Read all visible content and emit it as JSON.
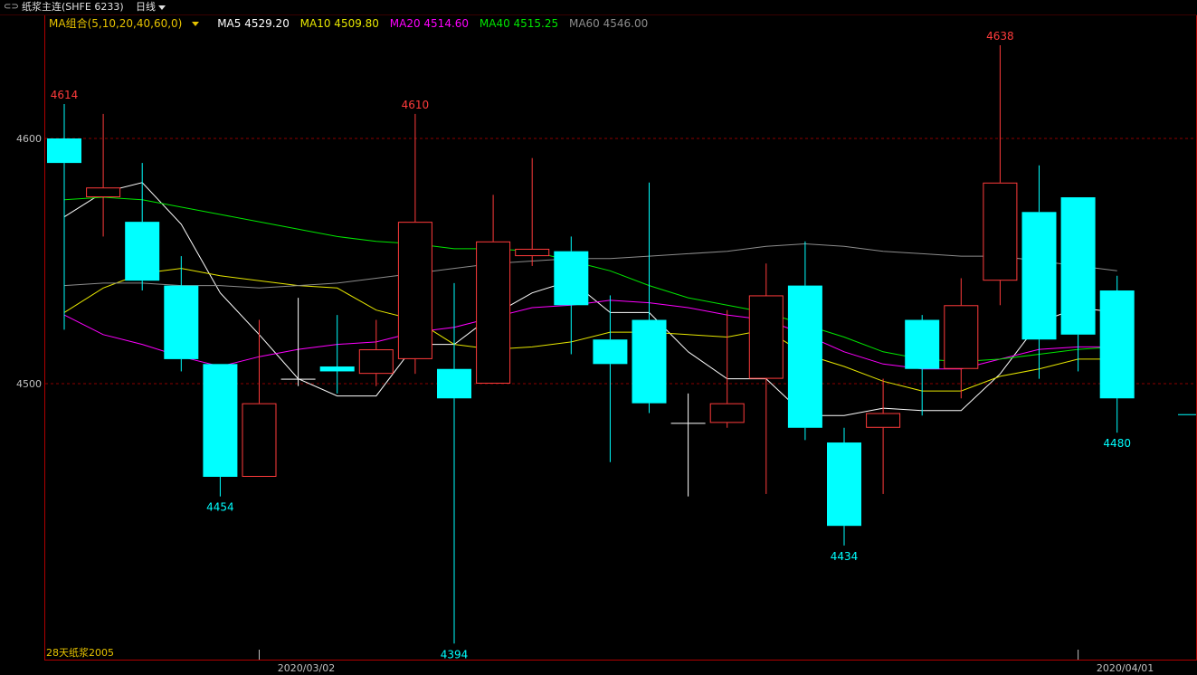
{
  "header": {
    "symbol_label": "纸浆主连(SHFE 6233)",
    "period_label": "日线"
  },
  "ma_legend": {
    "group_label": "MA组合(5,10,20,40,60,0)",
    "items": [
      {
        "label": "MA5 4529.20",
        "color": "#ffffff"
      },
      {
        "label": "MA10 4509.80",
        "color": "#e6e600"
      },
      {
        "label": "MA20 4514.60",
        "color": "#ff00ff"
      },
      {
        "label": "MA40 4515.25",
        "color": "#00e600"
      },
      {
        "label": "MA60 4546.00",
        "color": "#8c8c8c"
      }
    ]
  },
  "footer_note": "28天纸浆2005",
  "colors": {
    "up": "#ff3b3b",
    "down": "#00ffff",
    "frame": "#b00000",
    "grid": "#8b0000",
    "axis_text": "#c0c0c0"
  },
  "chart_data": {
    "type": "candlestick",
    "ylim": [
      4375,
      4650
    ],
    "yticks": [
      4500,
      4600
    ],
    "xtick_labels": [
      {
        "label": "2020/03/02",
        "index": 5
      },
      {
        "label": "2020/04/01",
        "index": 26
      }
    ],
    "candles": [
      {
        "o": 4600,
        "h": 4614,
        "l": 4522,
        "c": 4590
      },
      {
        "o": 4576,
        "h": 4610,
        "l": 4560,
        "c": 4580
      },
      {
        "o": 4566,
        "h": 4590,
        "l": 4538,
        "c": 4542
      },
      {
        "o": 4540,
        "h": 4552,
        "l": 4505,
        "c": 4510
      },
      {
        "o": 4508,
        "h": 4508,
        "l": 4454,
        "c": 4462
      },
      {
        "o": 4462,
        "h": 4526,
        "l": 4462,
        "c": 4492
      },
      {
        "o": 4502,
        "h": 4535,
        "l": 4499,
        "c": 4502
      },
      {
        "o": 4507,
        "h": 4528,
        "l": 4496,
        "c": 4505
      },
      {
        "o": 4504,
        "h": 4526,
        "l": 4499,
        "c": 4514
      },
      {
        "o": 4510,
        "h": 4610,
        "l": 4504,
        "c": 4566
      },
      {
        "o": 4506,
        "h": 4541,
        "l": 4394,
        "c": 4494
      },
      {
        "o": 4500,
        "h": 4577,
        "l": 4500,
        "c": 4558
      },
      {
        "o": 4552,
        "h": 4592,
        "l": 4548,
        "c": 4555
      },
      {
        "o": 4554,
        "h": 4560,
        "l": 4512,
        "c": 4532
      },
      {
        "o": 4518,
        "h": 4536,
        "l": 4468,
        "c": 4508
      },
      {
        "o": 4526,
        "h": 4582,
        "l": 4488,
        "c": 4492
      },
      {
        "o": 4484,
        "h": 4496,
        "l": 4454,
        "c": 4484
      },
      {
        "o": 4484,
        "h": 4530,
        "l": 4482,
        "c": 4492
      },
      {
        "o": 4502,
        "h": 4549,
        "l": 4455,
        "c": 4536
      },
      {
        "o": 4540,
        "h": 4558,
        "l": 4477,
        "c": 4482
      },
      {
        "o": 4476,
        "h": 4482,
        "l": 4434,
        "c": 4442
      },
      {
        "o": 4482,
        "h": 4502,
        "l": 4455,
        "c": 4488
      },
      {
        "o": 4526,
        "h": 4528,
        "l": 4487,
        "c": 4506
      },
      {
        "o": 4506,
        "h": 4543,
        "l": 4494,
        "c": 4532
      },
      {
        "o": 4542,
        "h": 4638,
        "l": 4532,
        "c": 4582
      },
      {
        "o": 4570,
        "h": 4589,
        "l": 4502,
        "c": 4518
      },
      {
        "o": 4576,
        "h": 4576,
        "l": 4505,
        "c": 4520
      },
      {
        "o": 4538,
        "h": 4544,
        "l": 4480,
        "c": 4494
      }
    ],
    "ma_series": [
      {
        "name": "MA5",
        "color": "#ffffff",
        "values": [
          4568,
          4578,
          4582,
          4565,
          4537,
          4520,
          4502,
          4495,
          4495,
          4516,
          4516,
          4528,
          4537,
          4542,
          4529,
          4529,
          4513,
          4502,
          4502,
          4487,
          4487,
          4490,
          4489,
          4489,
          4504,
          4525,
          4531,
          4529
        ]
      },
      {
        "name": "MA10",
        "color": "#e6e600",
        "values": [
          4529,
          4539,
          4545,
          4547,
          4544,
          4542,
          4540,
          4539,
          4530,
          4526,
          4516,
          4514,
          4515,
          4517,
          4521,
          4521,
          4520,
          4519,
          4522,
          4512,
          4507,
          4501,
          4497,
          4497,
          4503,
          4506,
          4510,
          4510
        ]
      },
      {
        "name": "MA20",
        "color": "#ff00ff",
        "values": [
          4528,
          4520,
          4516,
          4511,
          4507,
          4511,
          4514,
          4516,
          4517,
          4521,
          4523,
          4527,
          4531,
          4532,
          4534,
          4533,
          4531,
          4528,
          4526,
          4520,
          4513,
          4508,
          4506,
          4506,
          4510,
          4514,
          4515,
          4515
        ]
      },
      {
        "name": "MA40",
        "color": "#00e600",
        "values": [
          4575,
          4576,
          4575,
          4572,
          4569,
          4566,
          4563,
          4560,
          4558,
          4557,
          4555,
          4555,
          4554,
          4550,
          4546,
          4540,
          4535,
          4532,
          4529,
          4524,
          4519,
          4513,
          4510,
          4509,
          4510,
          4512,
          4514,
          4515
        ]
      },
      {
        "name": "MA60",
        "color": "#8c8c8c",
        "values": [
          4540,
          4541,
          4541,
          4540,
          4540,
          4539,
          4540,
          4541,
          4543,
          4545,
          4547,
          4549,
          4550,
          4551,
          4551,
          4552,
          4553,
          4554,
          4556,
          4557,
          4556,
          4554,
          4553,
          4552,
          4552,
          4550,
          4548,
          4546
        ]
      }
    ],
    "annotations": [
      {
        "label": "4614",
        "index": 0,
        "value": 4614,
        "pos": "above",
        "color": "#ff3b3b"
      },
      {
        "label": "4454",
        "index": 4,
        "value": 4454,
        "pos": "below",
        "color": "#00ffff"
      },
      {
        "label": "4610",
        "index": 9,
        "value": 4610,
        "pos": "above",
        "color": "#ff3b3b"
      },
      {
        "label": "4394",
        "index": 10,
        "value": 4394,
        "pos": "below",
        "color": "#00ffff"
      },
      {
        "label": "4434",
        "index": 20,
        "value": 4434,
        "pos": "below",
        "color": "#00ffff"
      },
      {
        "label": "4638",
        "index": 24,
        "value": 4638,
        "pos": "above",
        "color": "#ff3b3b"
      },
      {
        "label": "4480",
        "index": 27,
        "value": 4480,
        "pos": "below",
        "color": "#00ffff"
      }
    ]
  }
}
